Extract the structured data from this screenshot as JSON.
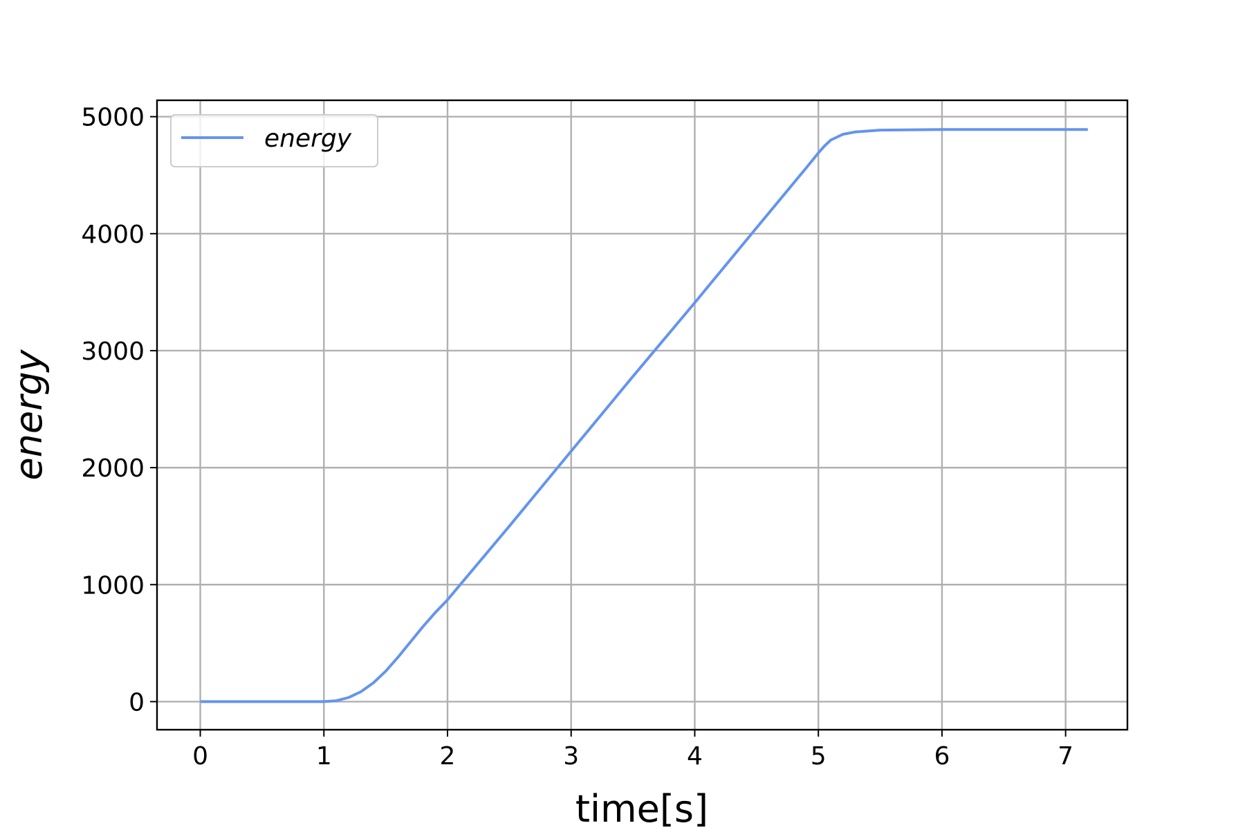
{
  "chart_data": {
    "type": "line",
    "xlabel": "time[s]",
    "ylabel": "energy",
    "xlim": [
      -0.35,
      7.5
    ],
    "ylim": [
      -240,
      5140
    ],
    "xticks": [
      0,
      1,
      2,
      3,
      4,
      5,
      6,
      7
    ],
    "yticks": [
      0,
      1000,
      2000,
      3000,
      4000,
      5000
    ],
    "grid": true,
    "legend_position": "top-left",
    "series": [
      {
        "name": "energy",
        "color": "#6495ED",
        "points": [
          [
            0,
            0
          ],
          [
            0.5,
            0
          ],
          [
            1.0,
            0
          ],
          [
            1.1,
            8
          ],
          [
            1.2,
            35
          ],
          [
            1.3,
            85
          ],
          [
            1.4,
            160
          ],
          [
            1.5,
            260
          ],
          [
            1.6,
            380
          ],
          [
            1.7,
            510
          ],
          [
            1.8,
            640
          ],
          [
            1.9,
            760
          ],
          [
            2.0,
            870
          ],
          [
            2.5,
            1500
          ],
          [
            3.0,
            2140
          ],
          [
            3.5,
            2780
          ],
          [
            4.0,
            3410
          ],
          [
            4.5,
            4050
          ],
          [
            4.9,
            4560
          ],
          [
            5.0,
            4690
          ],
          [
            5.05,
            4750
          ],
          [
            5.1,
            4800
          ],
          [
            5.2,
            4850
          ],
          [
            5.3,
            4870
          ],
          [
            5.5,
            4885
          ],
          [
            6.0,
            4890
          ],
          [
            7.18,
            4890
          ]
        ]
      }
    ]
  }
}
